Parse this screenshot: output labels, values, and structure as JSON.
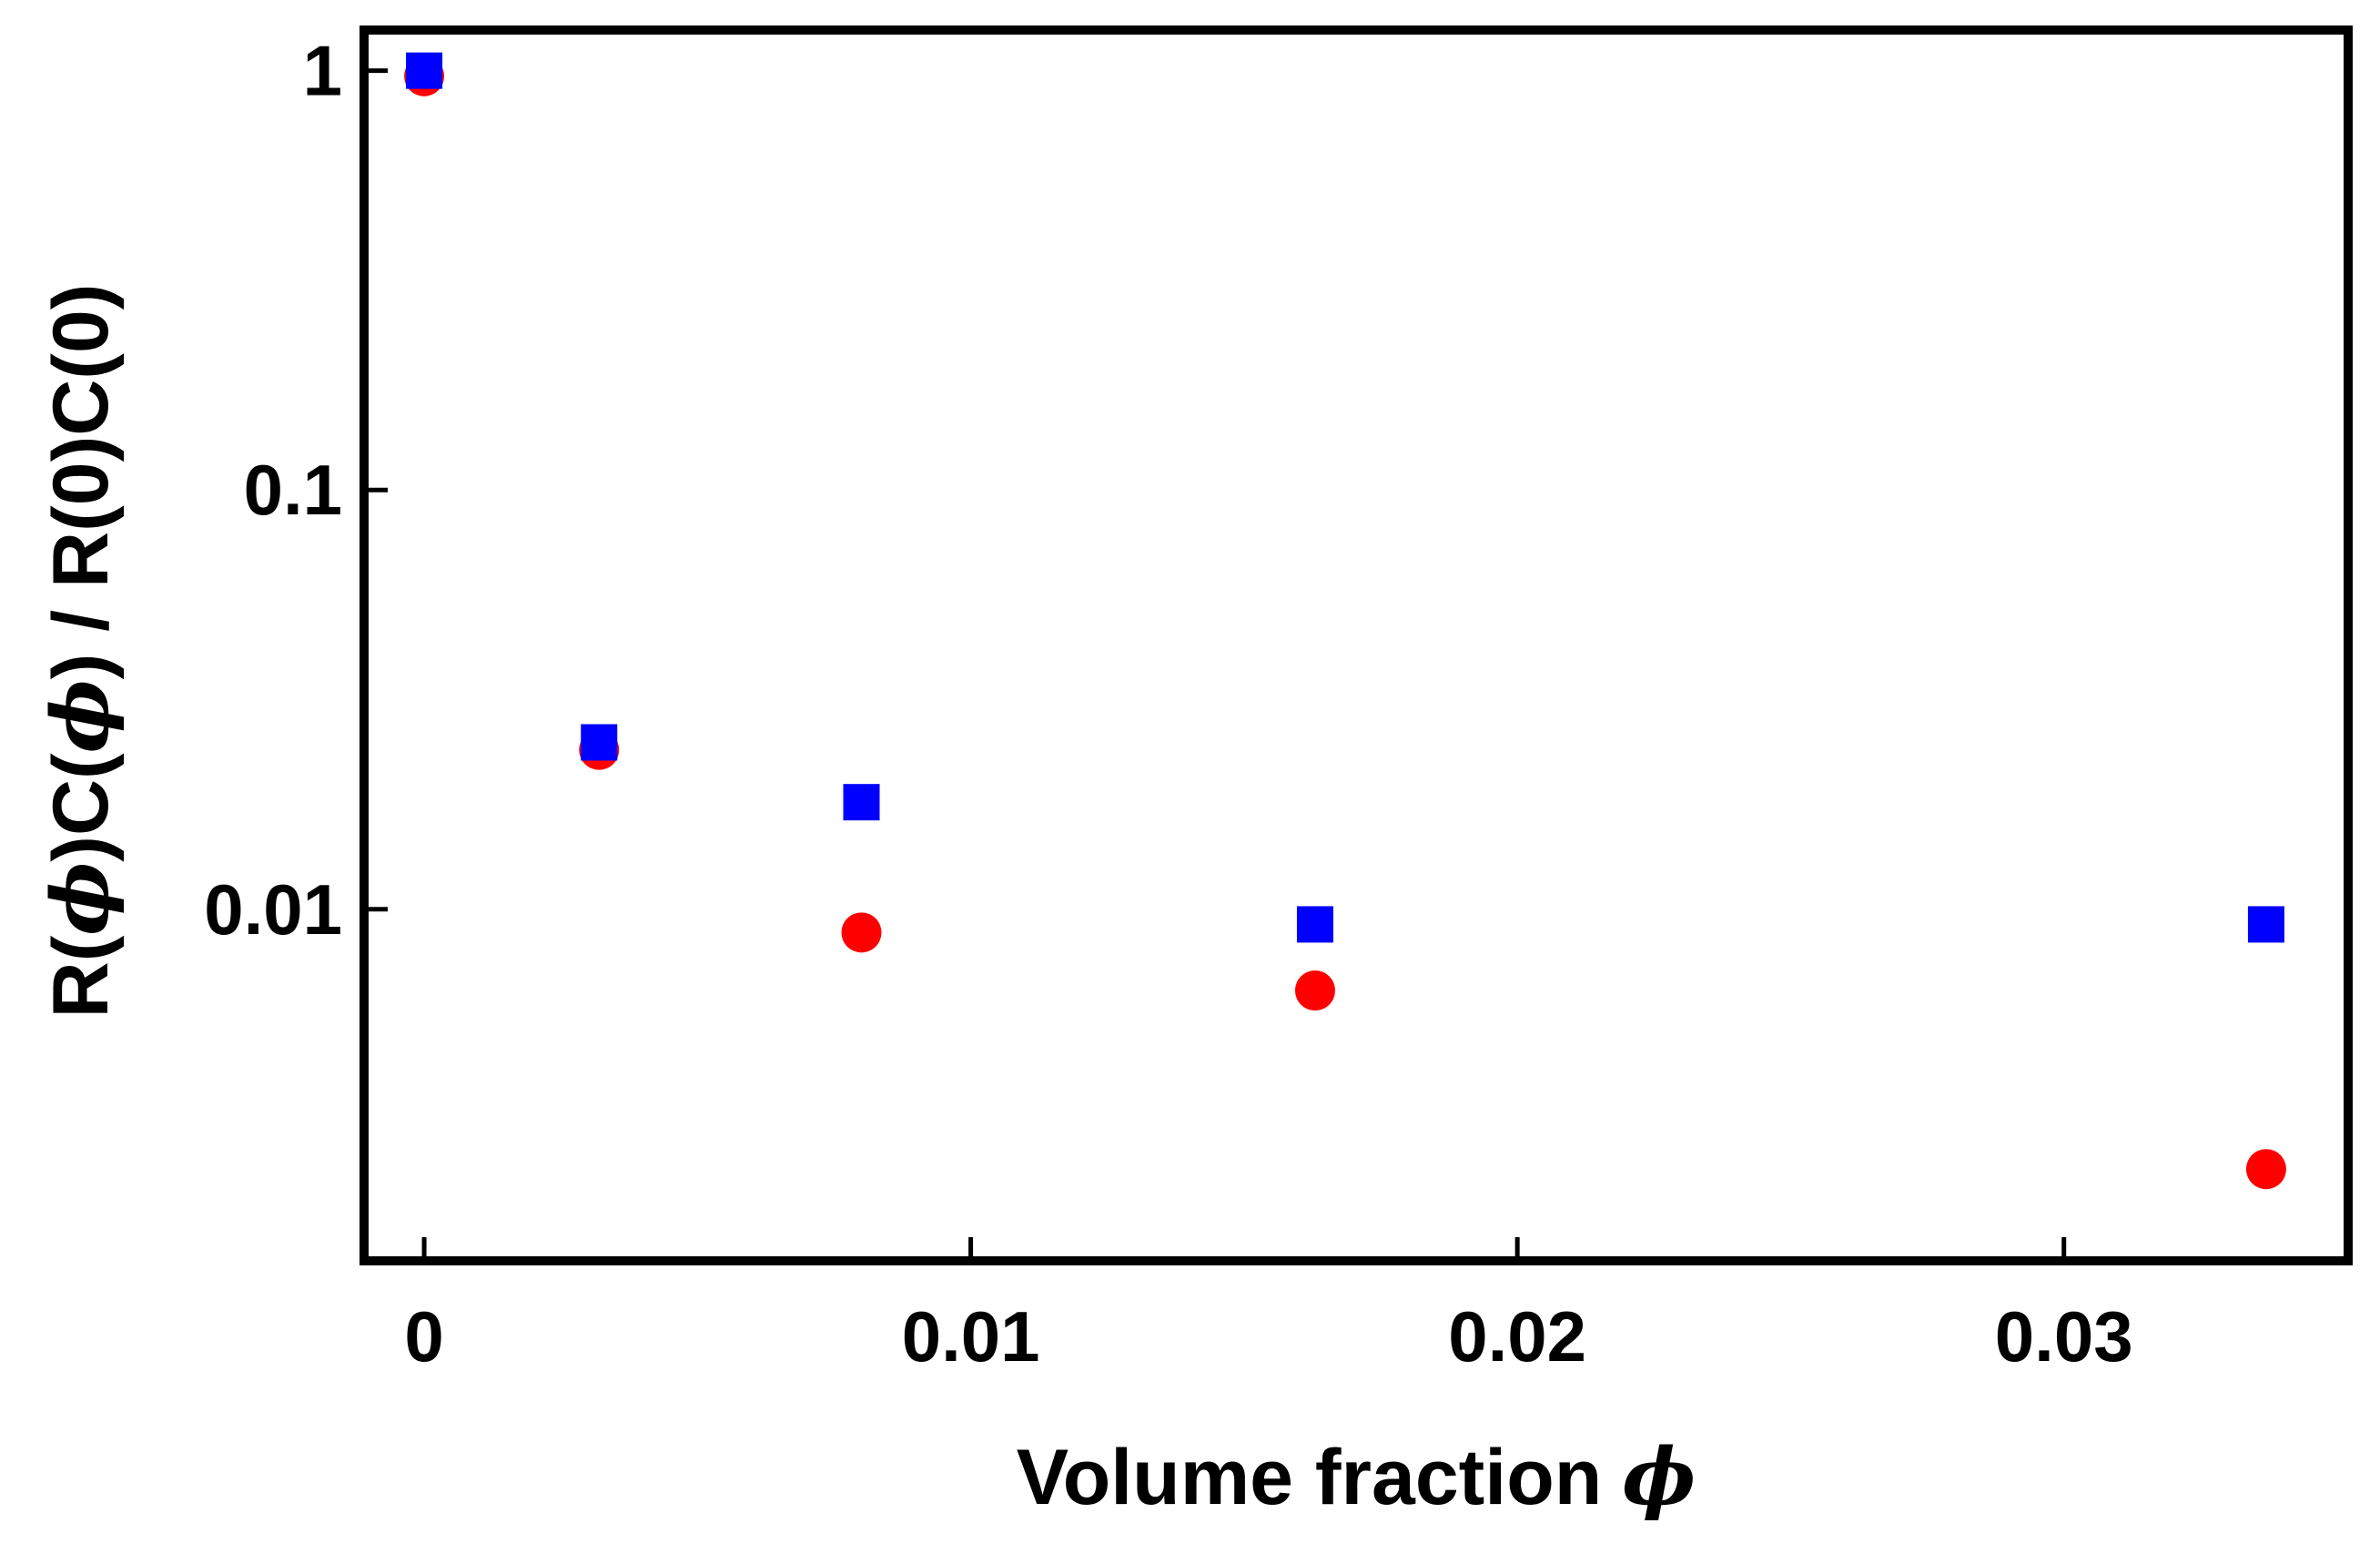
{
  "chart_data": {
    "type": "scatter",
    "xlabel": "Volume fraction",
    "xlabel_symbol": "ϕ",
    "ylabel_parts": [
      "R(",
      "ϕ",
      ")C(",
      "ϕ",
      ") / R(0)C(0)"
    ],
    "x_scale": "linear",
    "y_scale": "log",
    "xlim": [
      -0.0011,
      0.0352
    ],
    "ylim": [
      0.00145,
      1.25
    ],
    "x_ticks": [
      {
        "value": 0,
        "label": "0"
      },
      {
        "value": 0.01,
        "label": "0.01"
      },
      {
        "value": 0.02,
        "label": "0.02"
      },
      {
        "value": 0.03,
        "label": "0.03"
      }
    ],
    "y_ticks": [
      {
        "value": 1,
        "label": "1"
      },
      {
        "value": 0.1,
        "label": "0.1"
      },
      {
        "value": 0.01,
        "label": "0.01"
      }
    ],
    "grid": false,
    "legend": "none",
    "series": [
      {
        "marker": "circle",
        "color": "#ff0000",
        "points": [
          {
            "x": 0.0,
            "y": 0.97
          },
          {
            "x": 0.0032,
            "y": 0.024
          },
          {
            "x": 0.008,
            "y": 0.0088
          },
          {
            "x": 0.0163,
            "y": 0.0064
          },
          {
            "x": 0.0337,
            "y": 0.0024
          }
        ]
      },
      {
        "marker": "square",
        "color": "#0000ff",
        "points": [
          {
            "x": 0.0,
            "y": 1.0
          },
          {
            "x": 0.0032,
            "y": 0.025
          },
          {
            "x": 0.008,
            "y": 0.018
          },
          {
            "x": 0.0163,
            "y": 0.0092
          },
          {
            "x": 0.0337,
            "y": 0.0092
          }
        ]
      }
    ]
  }
}
